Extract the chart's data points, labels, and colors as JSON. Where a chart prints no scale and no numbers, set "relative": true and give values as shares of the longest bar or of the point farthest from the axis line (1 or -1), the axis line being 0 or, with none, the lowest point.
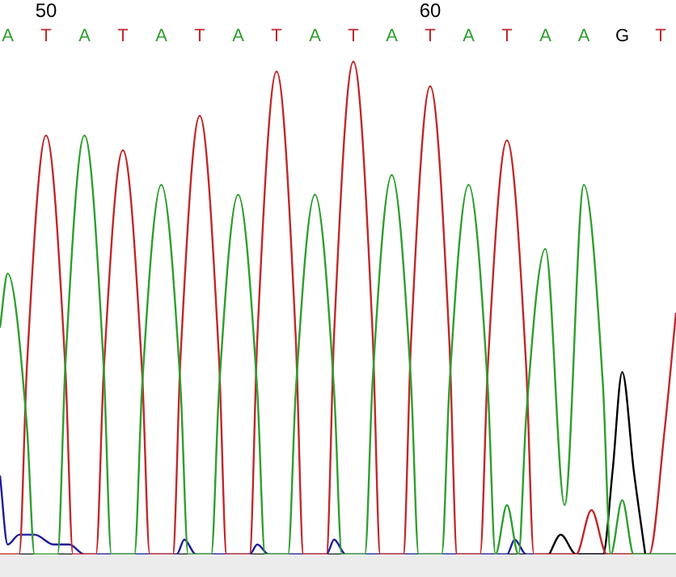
{
  "chart_data": {
    "type": "line",
    "relative": true,
    "legend": false,
    "grid": false,
    "tick_labels": "x",
    "line_style": "solid",
    "xlim": [
      48.8,
      66.4
    ],
    "xticks": [
      50,
      60
    ],
    "annotations": [
      "A",
      "T",
      "A",
      "T",
      "A",
      "T",
      "A",
      "T",
      "A",
      "T",
      "A",
      "T",
      "A",
      "T",
      "A",
      "A",
      "G",
      "T"
    ],
    "series": [
      {
        "color": "#2f9e2f",
        "x": [
          48.8,
          49,
          49.5,
          49.7,
          50.3,
          50.5,
          51,
          51.5,
          51.7,
          52.3,
          52.5,
          53,
          53.5,
          53.7,
          54.3,
          54.5,
          55,
          55.5,
          55.7,
          56.3,
          56.5,
          57,
          57.5,
          57.7,
          58.3,
          58.5,
          59,
          59.5,
          59.7,
          60.3,
          60.5,
          61,
          61.5,
          61.7,
          62,
          62.3,
          62.5,
          63,
          63.5,
          64,
          64.5,
          64.7,
          65,
          65.3,
          66.4
        ],
        "values": [
          0.46,
          0.57,
          0.26,
          0,
          0,
          0.38,
          0.85,
          0.38,
          0,
          0,
          0.34,
          0.75,
          0.34,
          0,
          0,
          0.33,
          0.73,
          0.33,
          0,
          0,
          0.33,
          0.73,
          0.33,
          0,
          0,
          0.35,
          0.77,
          0.35,
          0,
          0,
          0.34,
          0.75,
          0.34,
          0,
          0.1,
          0,
          0.28,
          0.62,
          0.1,
          0.75,
          0.34,
          0,
          0.11,
          0,
          0
        ]
      },
      {
        "color": "#c0282a",
        "x": [
          48.8,
          49.3,
          49.5,
          50,
          50.5,
          50.7,
          51.3,
          51.5,
          52,
          52.5,
          52.7,
          53.3,
          53.5,
          54,
          54.5,
          54.7,
          55.3,
          55.5,
          56,
          56.5,
          56.7,
          57.3,
          57.5,
          58,
          58.5,
          58.7,
          59.3,
          59.5,
          60,
          60.5,
          60.7,
          61.3,
          61.5,
          62,
          62.5,
          62.7,
          63.8,
          64.2,
          64.6,
          65.7,
          66.1,
          66.4
        ],
        "values": [
          0,
          0,
          0.38,
          0.85,
          0.38,
          0,
          0,
          0.37,
          0.82,
          0.37,
          0,
          0,
          0.4,
          0.89,
          0.4,
          0,
          0,
          0.44,
          0.98,
          0.44,
          0,
          0,
          0.45,
          1,
          0.45,
          0,
          0,
          0.43,
          0.95,
          0.43,
          0,
          0,
          0.38,
          0.84,
          0.38,
          0,
          0,
          0.09,
          0,
          0,
          0.25,
          0.49
        ]
      },
      {
        "color": "#000000",
        "x": [
          63.1,
          63.4,
          63.8,
          64.5,
          64.75,
          65,
          65.3,
          65.6
        ],
        "values": [
          0,
          0.04,
          0,
          0,
          0.17,
          0.37,
          0.17,
          0
        ]
      },
      {
        "color": "#1c1c9c",
        "x": [
          48.8,
          49,
          49.3,
          49.7,
          50.2,
          50.6,
          51,
          53.4,
          53.6,
          53.9,
          55.3,
          55.5,
          55.8,
          57.3,
          57.5,
          57.8,
          62,
          62.2,
          62.5,
          66.4
        ],
        "values": [
          0.16,
          0.02,
          0.04,
          0.04,
          0.02,
          0.02,
          0,
          0,
          0.03,
          0,
          0,
          0.02,
          0,
          0,
          0.03,
          0,
          0,
          0.03,
          0,
          0
        ]
      }
    ]
  }
}
